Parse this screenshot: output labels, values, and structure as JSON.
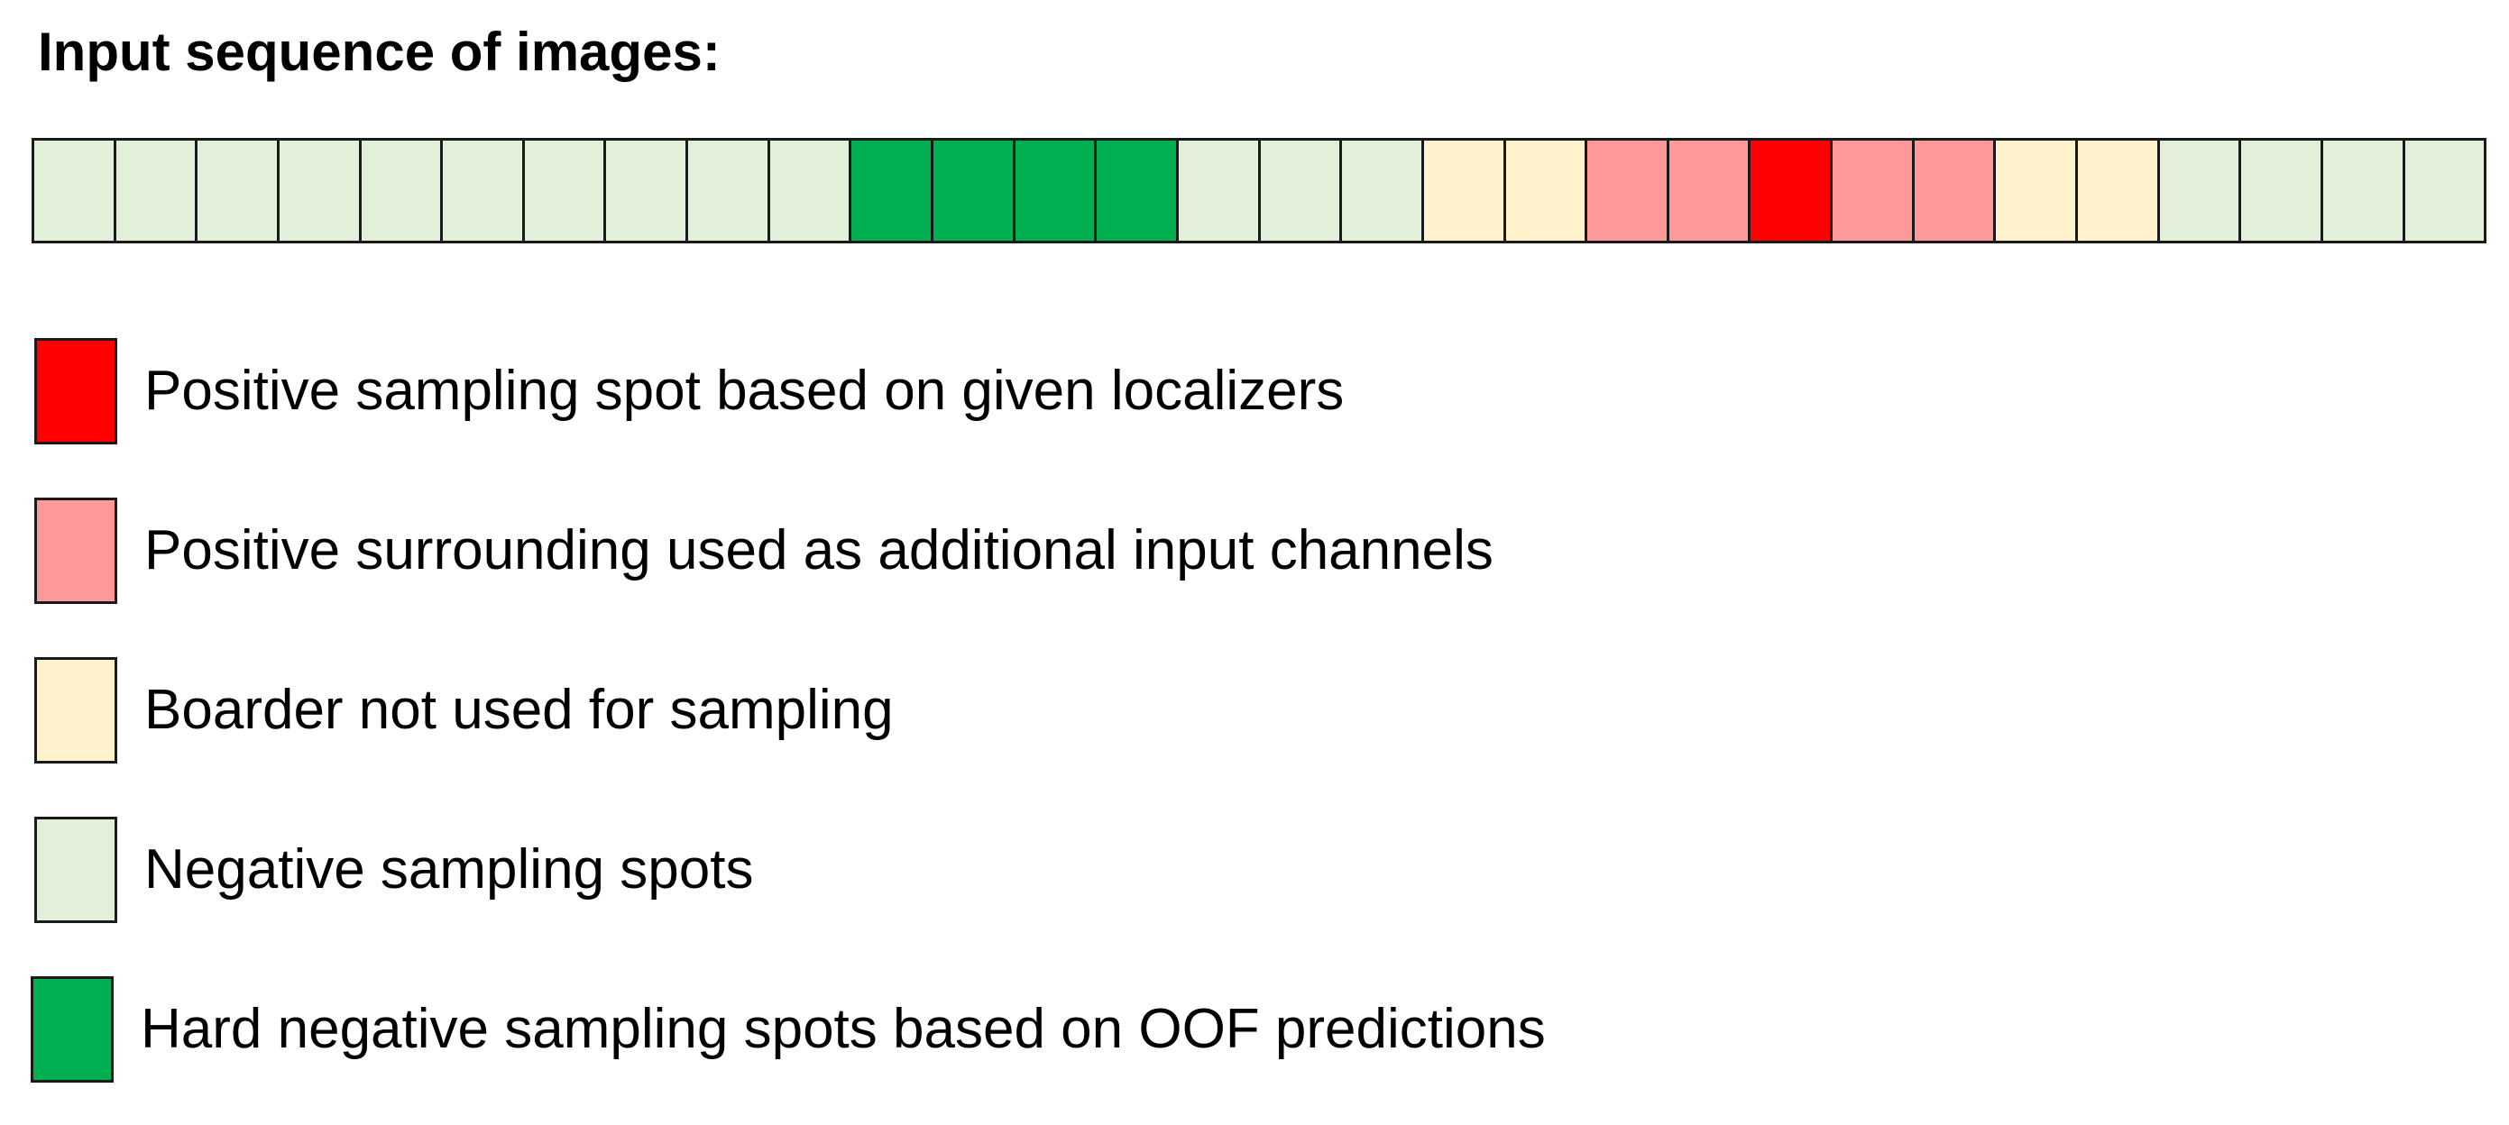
{
  "title": "Input sequence of images:",
  "colors": {
    "positive": "#ff0000",
    "positive_surrounding": "#ff9999",
    "border": "#fff2cc",
    "negative": "#e2efd9",
    "hard_negative": "#00b050"
  },
  "sequence": [
    "negative",
    "negative",
    "negative",
    "negative",
    "negative",
    "negative",
    "negative",
    "negative",
    "negative",
    "negative",
    "hard_negative",
    "hard_negative",
    "hard_negative",
    "hard_negative",
    "negative",
    "negative",
    "negative",
    "border",
    "border",
    "positive_surrounding",
    "positive_surrounding",
    "positive",
    "positive_surrounding",
    "positive_surrounding",
    "border",
    "border",
    "negative",
    "negative",
    "negative",
    "negative"
  ],
  "legend": [
    {
      "category": "positive",
      "label": "Positive sampling spot based on given localizers"
    },
    {
      "category": "positive_surrounding",
      "label": "Positive surrounding used as additional input channels"
    },
    {
      "category": "border",
      "label": "Boarder not used for sampling"
    },
    {
      "category": "negative",
      "label": "Negative sampling spots"
    },
    {
      "category": "hard_negative",
      "label": "Hard negative sampling spots based on OOF predictions"
    }
  ]
}
